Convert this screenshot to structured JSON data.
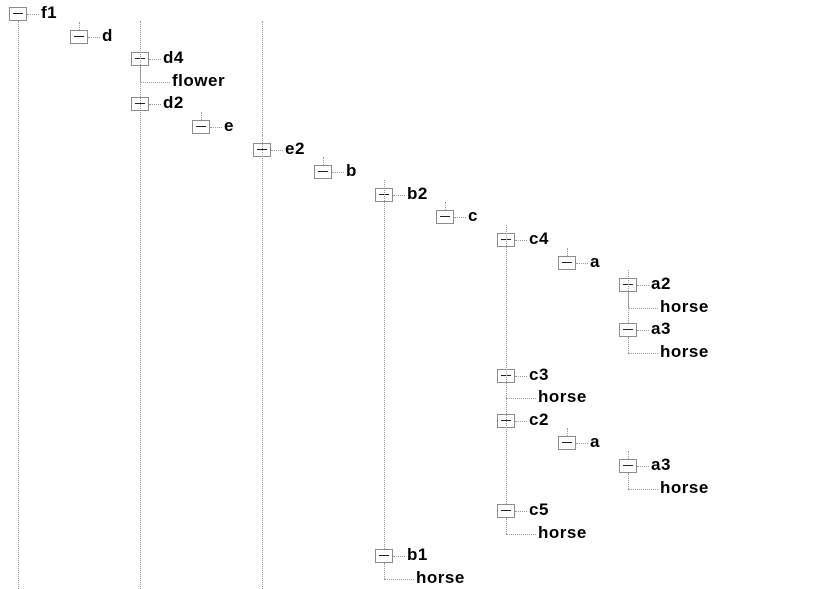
{
  "tree": {
    "label": "f1",
    "expanded": true,
    "children": [
      {
        "label": "d",
        "expanded": true,
        "children": [
          {
            "label": "d4",
            "expanded": true,
            "children": [
              {
                "label": "flower"
              }
            ]
          },
          {
            "label": "d2",
            "expanded": true,
            "children": [
              {
                "label": "e",
                "expanded": true,
                "children": [
                  {
                    "label": "e2",
                    "expanded": true,
                    "children": [
                      {
                        "label": "b",
                        "expanded": true,
                        "children": [
                          {
                            "label": "b2",
                            "expanded": true,
                            "children": [
                              {
                                "label": "c",
                                "expanded": true,
                                "children": [
                                  {
                                    "label": "c4",
                                    "expanded": true,
                                    "children": [
                                      {
                                        "label": "a",
                                        "expanded": true,
                                        "children": [
                                          {
                                            "label": "a2",
                                            "expanded": true,
                                            "children": [
                                              {
                                                "label": "horse"
                                              }
                                            ]
                                          },
                                          {
                                            "label": "a3",
                                            "expanded": true,
                                            "children": [
                                              {
                                                "label": "horse"
                                              }
                                            ]
                                          }
                                        ]
                                      }
                                    ]
                                  },
                                  {
                                    "label": "c3",
                                    "expanded": true,
                                    "children": [
                                      {
                                        "label": "horse"
                                      }
                                    ]
                                  },
                                  {
                                    "label": "c2",
                                    "expanded": true,
                                    "children": [
                                      {
                                        "label": "a",
                                        "expanded": true,
                                        "children": [
                                          {
                                            "label": "a3",
                                            "expanded": true,
                                            "children": [
                                              {
                                                "label": "horse"
                                              }
                                            ]
                                          }
                                        ]
                                      }
                                    ]
                                  },
                                  {
                                    "label": "c5",
                                    "expanded": true,
                                    "children": [
                                      {
                                        "label": "horse"
                                      }
                                    ]
                                  }
                                ]
                              }
                            ]
                          },
                          {
                            "label": "b1",
                            "expanded": true,
                            "children": [
                              {
                                "label": "horse"
                              }
                            ]
                          }
                        ]
                      }
                    ]
                  }
                ]
              }
            ]
          }
        ]
      }
    ]
  },
  "colors": {
    "connector": "#9a9a9a",
    "toggle_border": "#8c8c8c",
    "text": "#000000"
  },
  "icons": {
    "expanded_toggle": "minus-box-icon"
  }
}
